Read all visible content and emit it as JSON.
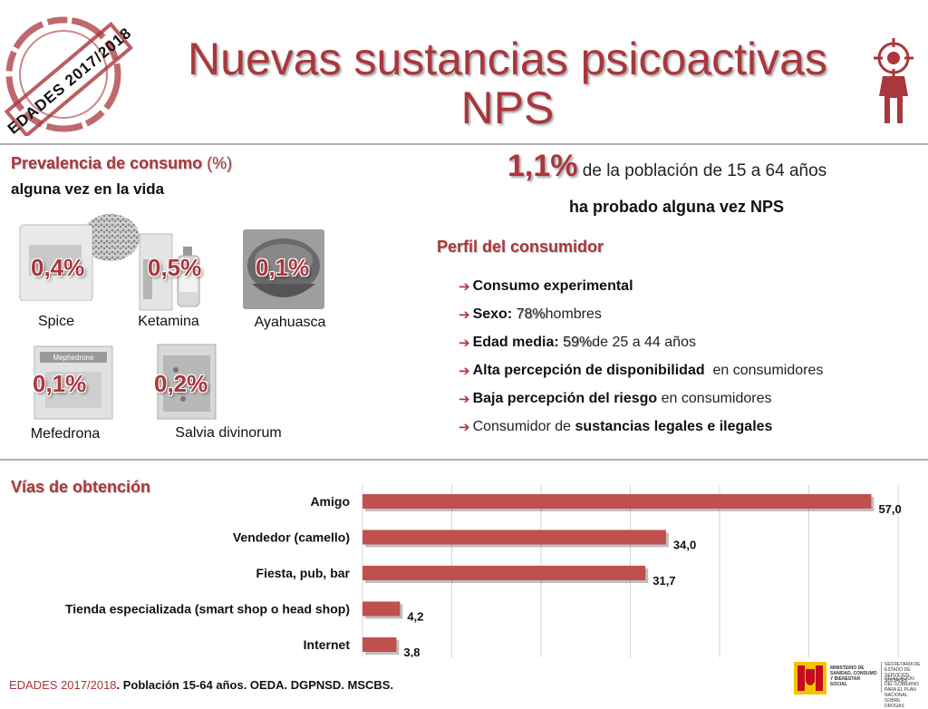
{
  "stamp": {
    "text": "EDADES 2017/2018"
  },
  "title": {
    "line1": "Nuevas sustancias psicoactivas",
    "line2": "NPS"
  },
  "prevalence": {
    "heading": "Prevalencia de consumo",
    "heading_unit": "(%)",
    "subheading": "alguna vez en la vida",
    "items": [
      {
        "name": "Spice",
        "value": "0,4%"
      },
      {
        "name": "Ketamina",
        "value": "0,5%"
      },
      {
        "name": "Ayahuasca",
        "value": "0,1%"
      },
      {
        "name": "Mefedrona",
        "value": "0,1%"
      },
      {
        "name": "Salvia divinorum",
        "value": "0,2%"
      }
    ],
    "photo_texts": {
      "mefedrona_pack": "Mephedrone"
    }
  },
  "headline": {
    "value": "1,1%",
    "text": "de la población de 15 a  64 años",
    "subtext": "ha probado alguna vez NPS"
  },
  "profile": {
    "heading": "Perfil del consumidor",
    "items": [
      {
        "bold": "Consumo experimental",
        "highlight": "",
        "rest": ""
      },
      {
        "bold": "Sexo:",
        "highlight": "78%",
        "rest": " hombres"
      },
      {
        "bold": "Edad media:",
        "highlight": "59%",
        "rest": " de 25 a 44 años"
      },
      {
        "bold": "Alta percepción de disponibilidad",
        "highlight": "",
        "rest": "  en consumidores"
      },
      {
        "bold": "Baja percepción del riesgo",
        "highlight": "",
        "rest": " en consumidores"
      },
      {
        "pre": "Consumidor de ",
        "bold": "sustancias legales e ilegales",
        "highlight": "",
        "rest": ""
      }
    ]
  },
  "chart_data": {
    "type": "bar",
    "orientation": "horizontal",
    "title": "Vías de obtención",
    "categories": [
      "Amigo",
      "Vendedor (camello)",
      "Fiesta, pub, bar",
      "Tienda especializada (smart shop o head shop)",
      "Internet"
    ],
    "values": [
      57.0,
      34.0,
      31.7,
      4.2,
      3.8
    ],
    "value_labels": [
      "57,0",
      "34,0",
      "31,7",
      "4,2",
      "3,8"
    ],
    "xlim": [
      0,
      60
    ],
    "grid": true,
    "bar_color": "#c0504d"
  },
  "footer": {
    "red": "EDADES 2017/2018",
    "rest": ". Población 15-64 años. OEDA. DGPNSD. MSCBS."
  },
  "ministry": {
    "line1": "MINISTERIO DE SANIDAD, CONSUMO Y BIENESTAR SOCIAL",
    "line2": "SECRETARÍA DE ESTADO DE SERVICIOS SOCIALES",
    "line3": "DELEGACIÓN DEL GOBIERNO PARA EL PLAN NACIONAL SOBRE DROGAS"
  },
  "colors": {
    "accent": "#a9373c",
    "bar": "#c0504d",
    "rule": "#b0b0b0"
  }
}
